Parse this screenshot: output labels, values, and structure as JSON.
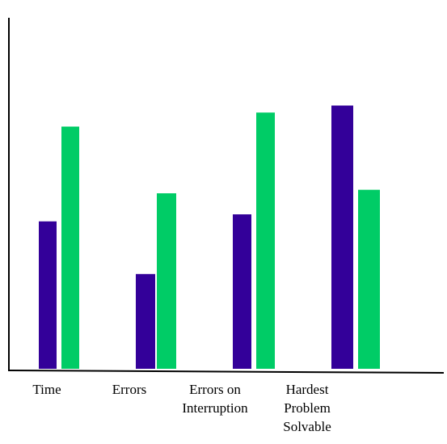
{
  "chart_data": {
    "type": "bar",
    "categories": [
      [
        "Time"
      ],
      [
        "Errors"
      ],
      [
        "Errors on",
        "Interruption"
      ],
      [
        "Hardest",
        "Problem",
        "Solvable"
      ]
    ],
    "series": [
      {
        "values": [
          42,
          27,
          44,
          75
        ]
      },
      {
        "values": [
          69,
          50,
          73,
          51
        ]
      }
    ],
    "colors": [
      "#330099",
      "#00cc66"
    ],
    "ylim": [
      0,
      100
    ],
    "grid": false,
    "legend": "none",
    "title": "",
    "xlabel": "",
    "ylabel": ""
  }
}
